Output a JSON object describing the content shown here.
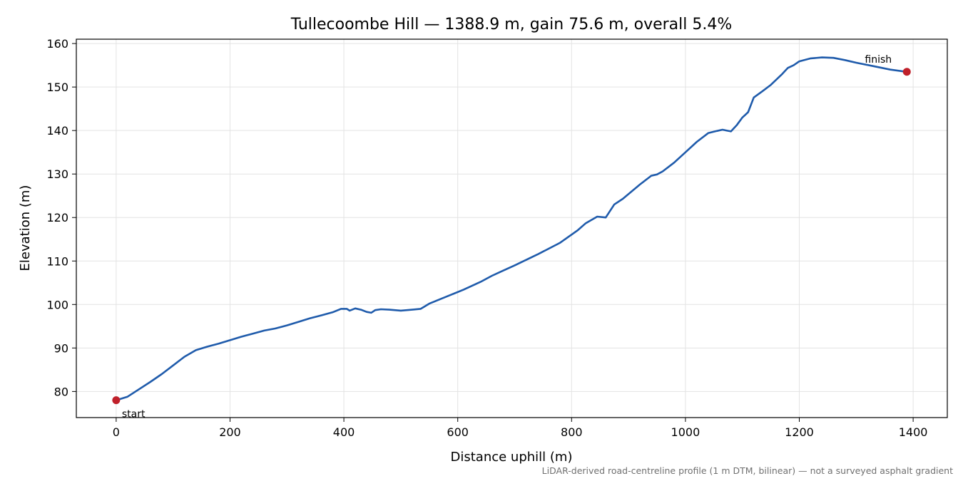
{
  "chart_data": {
    "type": "line",
    "title": "Tullecoombe Hill — 1388.9 m, gain 75.6 m, overall 5.4%",
    "xlabel": "Distance uphill (m)",
    "ylabel": "Elevation (m)",
    "footnote": "LiDAR-derived road-centreline profile (1 m DTM, bilinear) — not a surveyed asphalt gradient",
    "xlim": [
      -70,
      1460
    ],
    "ylim": [
      74,
      161
    ],
    "xticks": [
      0,
      200,
      400,
      600,
      800,
      1000,
      1200,
      1400
    ],
    "yticks": [
      80,
      90,
      100,
      110,
      120,
      130,
      140,
      150,
      160
    ],
    "grid": true,
    "line_color": "#1f5bab",
    "marker_color": "#c0202a",
    "series": [
      {
        "x": [
          0,
          20,
          40,
          60,
          80,
          100,
          120,
          140,
          160,
          180,
          200,
          220,
          240,
          260,
          280,
          300,
          320,
          340,
          360,
          380,
          395,
          405,
          410,
          420,
          430,
          440,
          448,
          455,
          465,
          480,
          500,
          520,
          535,
          550,
          580,
          610,
          640,
          660,
          680,
          700,
          740,
          780,
          810,
          825,
          845,
          860,
          875,
          890,
          920,
          940,
          950,
          960,
          980,
          1000,
          1020,
          1040,
          1055,
          1065,
          1080,
          1090,
          1100,
          1110,
          1120,
          1135,
          1150,
          1170,
          1180,
          1190,
          1200,
          1220,
          1240,
          1260,
          1280,
          1300,
          1330,
          1360,
          1388.9
        ],
        "y": [
          78.0,
          78.8,
          80.5,
          82.2,
          84.0,
          86.0,
          88.0,
          89.5,
          90.3,
          91.0,
          91.8,
          92.6,
          93.3,
          94.0,
          94.5,
          95.2,
          96.0,
          96.8,
          97.5,
          98.2,
          99.0,
          99.0,
          98.6,
          99.1,
          98.8,
          98.3,
          98.1,
          98.7,
          98.9,
          98.8,
          98.6,
          98.8,
          99.0,
          100.2,
          101.8,
          103.4,
          105.2,
          106.6,
          107.8,
          109.0,
          111.5,
          114.2,
          117.0,
          118.7,
          120.2,
          120.0,
          123.0,
          124.3,
          127.6,
          129.6,
          129.9,
          130.6,
          132.6,
          135.0,
          137.4,
          139.4,
          139.9,
          140.2,
          139.8,
          141.2,
          143.0,
          144.2,
          147.6,
          149.0,
          150.5,
          153.0,
          154.4,
          155.0,
          155.9,
          156.6,
          156.8,
          156.7,
          156.2,
          155.6,
          154.8,
          154.0,
          153.5
        ]
      }
    ],
    "annotations": [
      {
        "text": "start",
        "x": 0,
        "y": 78.0
      },
      {
        "text": "finish",
        "x": 1388.9,
        "y": 153.5
      }
    ]
  }
}
